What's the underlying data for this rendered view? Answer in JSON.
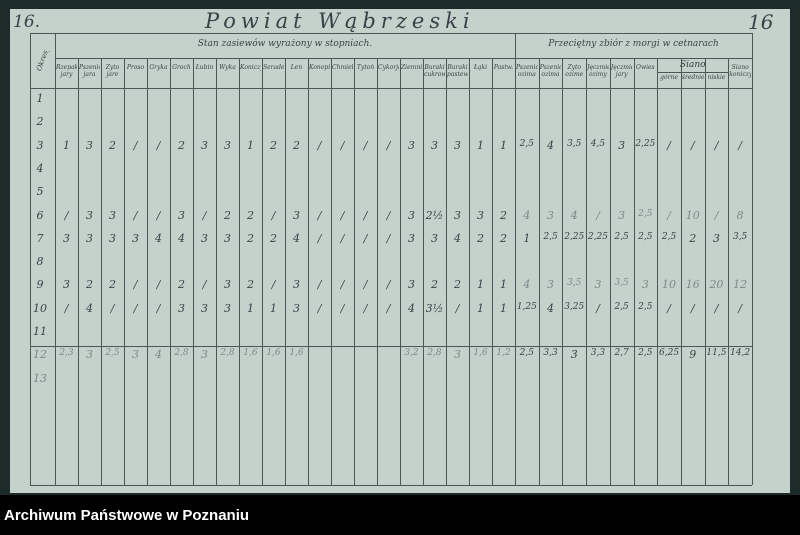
{
  "page_number_left": "16.",
  "page_number_right": "16",
  "title": "Powiat Wąbrzeski",
  "footer": "Archiwum Państwowe w Poznaniu",
  "table": {
    "row_header": "Okresy",
    "group_left": "Stan zasiewów wyrażony w stopniach.",
    "group_right": "Przeciętny zbiór z morgi w cetnarach",
    "subgroup_siano": "Siano",
    "columns_left": [
      "Rzepak jary",
      "Pszenica jara",
      "Żyto jare",
      "Proso",
      "Gryka",
      "Groch",
      "Łubin",
      "Wyka",
      "Koniczyna",
      "Seradela",
      "Len",
      "Konopie",
      "Chmiel",
      "Tytoń",
      "Cykorja",
      "Ziemniaki",
      "Buraki cukrowe",
      "Buraki pastewne",
      "Łąki",
      "Pastw."
    ],
    "columns_right": [
      "Pszenica ozima",
      "Pszenica ozima",
      "Żyto ozime",
      "Jęczmień ozimy",
      "Jęczmień jary",
      "Owies",
      "górne",
      "średnie",
      "niskie",
      "Siano koniczyna"
    ],
    "rows": [
      {
        "label": "1",
        "left": [],
        "right": []
      },
      {
        "label": "2",
        "left": [],
        "right": []
      },
      {
        "label": "3",
        "left": [
          "1",
          "3",
          "2",
          "/",
          "/",
          "2",
          "3",
          "3",
          "1",
          "2",
          "2",
          "/",
          "/",
          "/",
          "/",
          "3",
          "3",
          "3",
          "1",
          "1"
        ],
        "right": [
          "2,5",
          "4",
          "3,5",
          "4,5",
          "3",
          "2,25",
          "/",
          "/",
          "/",
          "/"
        ]
      },
      {
        "label": "4",
        "left": [],
        "right": []
      },
      {
        "label": "5",
        "left": [],
        "right": []
      },
      {
        "label": "6",
        "left": [
          "/",
          "3",
          "3",
          "/",
          "/",
          "3",
          "/",
          "2",
          "2",
          "/",
          "3",
          "/",
          "/",
          "/",
          "/",
          "3",
          "2½",
          "3",
          "3",
          "2"
        ],
        "right": [
          "4",
          "3",
          "4",
          "/",
          "3",
          "2,5",
          "/",
          "10",
          "/",
          "8"
        ]
      },
      {
        "label": "7",
        "left": [
          "3",
          "3",
          "3",
          "3",
          "4",
          "4",
          "3",
          "3",
          "2",
          "2",
          "4",
          "/",
          "/",
          "/",
          "/",
          "3",
          "3",
          "4",
          "2",
          "2"
        ],
        "right": [
          "1",
          "2,5",
          "2,25",
          "2,25",
          "2,5",
          "2,5",
          "2,5",
          "2",
          "3",
          "3,5"
        ]
      },
      {
        "label": "8",
        "left": [],
        "right": []
      },
      {
        "label": "9",
        "left": [
          "3",
          "2",
          "2",
          "/",
          "/",
          "2",
          "/",
          "3",
          "2",
          "/",
          "3",
          "/",
          "/",
          "/",
          "/",
          "3",
          "2",
          "2",
          "1",
          "1"
        ],
        "right": [
          "4",
          "3",
          "3,5",
          "3",
          "3,5",
          "3",
          "10",
          "16",
          "20",
          "12"
        ]
      },
      {
        "label": "10",
        "left": [
          "/",
          "4",
          "/",
          "/",
          "/",
          "3",
          "3",
          "3",
          "1",
          "1",
          "3",
          "/",
          "/",
          "/",
          "/",
          "4",
          "3½",
          "/",
          "1",
          "1"
        ],
        "right": [
          "1,25",
          "4",
          "3,25",
          "/",
          "2,5",
          "2,5",
          "/",
          "/",
          "/",
          "/"
        ]
      },
      {
        "label": "11",
        "left": [],
        "right": []
      },
      {
        "label": "12",
        "left": [
          "2,3",
          "3",
          "2,5",
          "3",
          "4",
          "2,8",
          "3",
          "2,8",
          "1,6",
          "1,6",
          "1,6",
          "",
          "",
          "",
          "",
          "3,2",
          "2,8",
          "3",
          "1,6",
          "1,2"
        ],
        "right": [
          "2,5",
          "3,3",
          "3",
          "3,3",
          "2,7",
          "2,5",
          "6,25",
          "9",
          "11,5",
          "14,2"
        ]
      },
      {
        "label": "13",
        "left": [],
        "right": []
      }
    ]
  },
  "colors": {
    "paper": "#c4d2cb",
    "background": "#1d2b2a",
    "ink": "#3a4148",
    "footer_bar": "#000000"
  }
}
